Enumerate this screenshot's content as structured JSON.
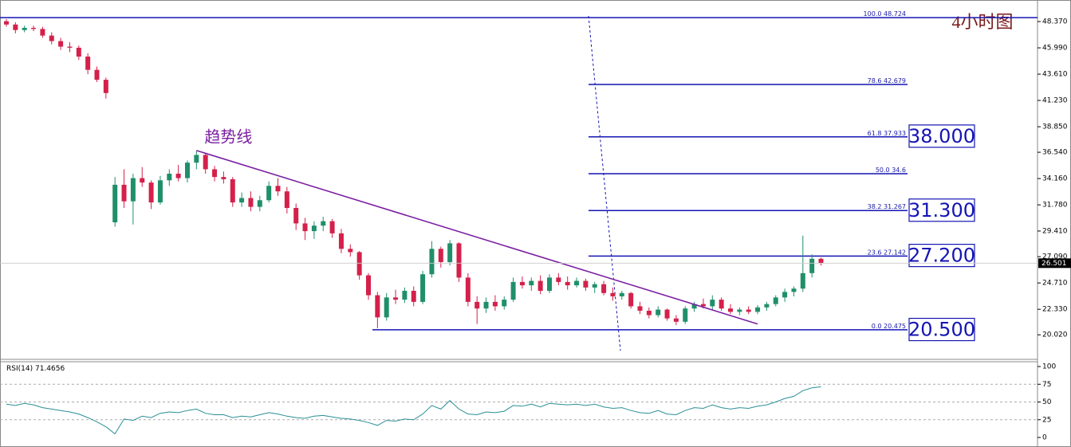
{
  "chart_data": {
    "type": "candlestick",
    "title": "4小时图",
    "colors": {
      "up": "#1f8f6a",
      "down": "#d4204a",
      "fib": "#1414b4",
      "trend": "#7b1fa2",
      "rsi": "#2a8f95"
    },
    "ylim": [
      17.87,
      50.32
    ],
    "yticks": [
      {
        "value": 48.37,
        "label": "48.370"
      },
      {
        "value": 45.99,
        "label": "45.990"
      },
      {
        "value": 43.61,
        "label": "43.610"
      },
      {
        "value": 41.23,
        "label": "41.230"
      },
      {
        "value": 38.85,
        "label": "38.850"
      },
      {
        "value": 36.54,
        "label": "36.540"
      },
      {
        "value": 34.16,
        "label": "34.160"
      },
      {
        "value": 31.78,
        "label": "31.780"
      },
      {
        "value": 29.41,
        "label": "29.410"
      },
      {
        "value": 27.09,
        "label": "27.090"
      },
      {
        "value": 24.71,
        "label": "24.710"
      },
      {
        "value": 22.33,
        "label": "22.330"
      },
      {
        "value": 20.02,
        "label": "20.020"
      }
    ],
    "current_price": 26.501,
    "candles": [
      [
        48.4,
        48.6,
        47.9,
        48.1
      ],
      [
        48.1,
        48.3,
        47.3,
        47.6
      ],
      [
        47.6,
        48.0,
        47.4,
        47.8
      ],
      [
        47.8,
        48.0,
        47.5,
        47.7
      ],
      [
        47.7,
        47.9,
        46.9,
        47.1
      ],
      [
        47.1,
        47.4,
        46.3,
        46.6
      ],
      [
        46.6,
        46.9,
        45.8,
        46.1
      ],
      [
        46.1,
        46.5,
        45.6,
        46.0
      ],
      [
        46.0,
        46.2,
        44.9,
        45.2
      ],
      [
        45.2,
        45.5,
        43.6,
        44.0
      ],
      [
        44.0,
        44.3,
        42.9,
        43.1
      ],
      [
        43.1,
        43.3,
        41.4,
        41.9
      ],
      [
        30.2,
        34.3,
        29.8,
        33.6
      ],
      [
        33.6,
        35.0,
        31.5,
        32.1
      ],
      [
        32.1,
        34.6,
        30.0,
        34.2
      ],
      [
        34.2,
        35.2,
        33.4,
        33.8
      ],
      [
        33.8,
        34.0,
        31.4,
        32.0
      ],
      [
        32.0,
        34.4,
        31.8,
        34.0
      ],
      [
        34.0,
        35.0,
        33.5,
        34.6
      ],
      [
        34.6,
        35.4,
        33.9,
        34.2
      ],
      [
        34.2,
        35.8,
        33.8,
        35.6
      ],
      [
        35.6,
        36.7,
        35.0,
        36.3
      ],
      [
        36.3,
        36.5,
        34.6,
        35.0
      ],
      [
        35.0,
        35.3,
        33.9,
        34.3
      ],
      [
        34.3,
        34.8,
        33.7,
        34.1
      ],
      [
        34.1,
        34.3,
        31.6,
        32.0
      ],
      [
        32.0,
        32.9,
        31.6,
        32.4
      ],
      [
        32.4,
        33.0,
        31.2,
        31.6
      ],
      [
        31.6,
        32.6,
        31.2,
        32.2
      ],
      [
        32.2,
        33.9,
        32.0,
        33.5
      ],
      [
        33.5,
        34.2,
        32.6,
        33.0
      ],
      [
        33.0,
        33.4,
        31.0,
        31.5
      ],
      [
        31.5,
        31.9,
        29.5,
        30.1
      ],
      [
        30.1,
        30.6,
        28.6,
        29.4
      ],
      [
        29.4,
        30.3,
        28.7,
        29.9
      ],
      [
        29.9,
        30.7,
        29.4,
        30.3
      ],
      [
        30.3,
        30.5,
        28.8,
        29.2
      ],
      [
        29.2,
        29.6,
        27.4,
        27.8
      ],
      [
        27.8,
        28.2,
        27.1,
        27.5
      ],
      [
        27.5,
        27.6,
        25.0,
        25.4
      ],
      [
        25.4,
        25.6,
        23.2,
        23.6
      ],
      [
        23.6,
        23.9,
        20.6,
        21.6
      ],
      [
        21.6,
        23.8,
        21.3,
        23.4
      ],
      [
        23.4,
        24.1,
        22.8,
        23.2
      ],
      [
        23.2,
        24.3,
        22.9,
        24.0
      ],
      [
        24.0,
        24.4,
        22.6,
        23.0
      ],
      [
        23.0,
        25.8,
        22.8,
        25.5
      ],
      [
        25.5,
        28.5,
        25.2,
        27.8
      ],
      [
        27.8,
        28.0,
        26.1,
        26.6
      ],
      [
        26.6,
        28.6,
        26.3,
        28.3
      ],
      [
        28.3,
        28.4,
        24.8,
        25.2
      ],
      [
        25.2,
        25.6,
        22.6,
        23.0
      ],
      [
        23.0,
        23.5,
        21.0,
        22.4
      ],
      [
        22.4,
        23.4,
        22.0,
        23.0
      ],
      [
        23.0,
        23.6,
        22.2,
        22.6
      ],
      [
        22.6,
        23.5,
        22.3,
        23.2
      ],
      [
        23.2,
        25.2,
        23.0,
        24.8
      ],
      [
        24.8,
        25.3,
        24.2,
        24.5
      ],
      [
        24.5,
        25.2,
        24.0,
        24.9
      ],
      [
        24.9,
        25.4,
        23.7,
        24.0
      ],
      [
        24.0,
        25.5,
        23.8,
        25.2
      ],
      [
        25.2,
        25.6,
        24.5,
        24.8
      ],
      [
        24.8,
        25.3,
        24.1,
        24.5
      ],
      [
        24.5,
        25.2,
        24.3,
        24.9
      ],
      [
        24.9,
        25.1,
        24.0,
        24.3
      ],
      [
        24.3,
        24.8,
        23.8,
        24.6
      ],
      [
        24.6,
        24.9,
        23.6,
        23.8
      ],
      [
        23.8,
        24.3,
        23.1,
        23.5
      ],
      [
        23.5,
        24.0,
        23.2,
        23.8
      ],
      [
        23.8,
        23.9,
        22.4,
        22.6
      ],
      [
        22.6,
        23.0,
        21.9,
        22.2
      ],
      [
        22.2,
        22.5,
        21.5,
        21.8
      ],
      [
        21.8,
        22.6,
        21.6,
        22.3
      ],
      [
        22.3,
        22.4,
        21.3,
        21.5
      ],
      [
        21.5,
        21.8,
        20.9,
        21.2
      ],
      [
        21.2,
        22.6,
        21.0,
        22.4
      ],
      [
        22.4,
        23.0,
        22.1,
        22.8
      ],
      [
        22.8,
        23.3,
        22.4,
        22.6
      ],
      [
        22.6,
        23.6,
        22.3,
        23.2
      ],
      [
        23.2,
        23.4,
        22.2,
        22.4
      ],
      [
        22.4,
        22.8,
        21.9,
        22.1
      ],
      [
        22.1,
        22.5,
        21.8,
        22.3
      ],
      [
        22.3,
        22.6,
        21.9,
        22.1
      ],
      [
        22.1,
        22.7,
        21.9,
        22.5
      ],
      [
        22.5,
        23.0,
        22.2,
        22.8
      ],
      [
        22.8,
        23.6,
        22.6,
        23.4
      ],
      [
        23.4,
        24.2,
        23.0,
        23.9
      ],
      [
        23.9,
        24.4,
        23.5,
        24.2
      ],
      [
        24.2,
        29.0,
        23.9,
        25.6
      ],
      [
        25.6,
        27.3,
        25.2,
        26.9
      ],
      [
        26.9,
        27.0,
        26.3,
        26.5
      ]
    ],
    "fib_levels": [
      {
        "ratio": {
          "value": 100,
          "label": "100.0"
        },
        "price": 48.724
      },
      {
        "ratio": 78.6,
        "price": 42.679
      },
      {
        "ratio": 61.8,
        "price": 37.933
      },
      {
        "ratio": {
          "value": 50,
          "label": "50.0"
        },
        "price": 34.6
      },
      {
        "ratio": 38.2,
        "price": 31.267
      },
      {
        "ratio": 23.6,
        "price": 27.142
      },
      {
        "ratio": {
          "value": 0,
          "label": "0.0"
        },
        "price": 20.475
      }
    ],
    "targets": [
      {
        "value": 38,
        "label": "38.000"
      },
      {
        "value": 31.3,
        "label": "31.300"
      },
      {
        "value": 27.2,
        "label": "27.200"
      },
      {
        "value": 20.5,
        "label": "20.500"
      }
    ],
    "trendline": {
      "label": "趋势线",
      "start": {
        "index": 21,
        "price": 36.7
      },
      "end": {
        "index": 83,
        "price": 21.0
      }
    },
    "rsi": {
      "name": "RSI(14)",
      "ylim": [
        0,
        100
      ],
      "yticks": [
        100,
        75,
        50,
        25,
        0
      ],
      "levels": [
        75,
        50,
        25
      ],
      "values": [
        47,
        45,
        48,
        46,
        42,
        40,
        38,
        36,
        33,
        28,
        22,
        15,
        5,
        26,
        24,
        30,
        28,
        34,
        36,
        35,
        38,
        40,
        34,
        32,
        32,
        28,
        30,
        29,
        32,
        35,
        33,
        30,
        28,
        27,
        30,
        31,
        29,
        27,
        26,
        24,
        21,
        17,
        24,
        23,
        26,
        25,
        33,
        45,
        40,
        52,
        40,
        33,
        32,
        36,
        35,
        37,
        45,
        44,
        47,
        43,
        48,
        47,
        46,
        47,
        45,
        47,
        43,
        41,
        42,
        38,
        35,
        34,
        38,
        33,
        32,
        38,
        42,
        41,
        46,
        42,
        40,
        42,
        41,
        44,
        46,
        50,
        55,
        58,
        66,
        70,
        71.4656
      ]
    }
  }
}
